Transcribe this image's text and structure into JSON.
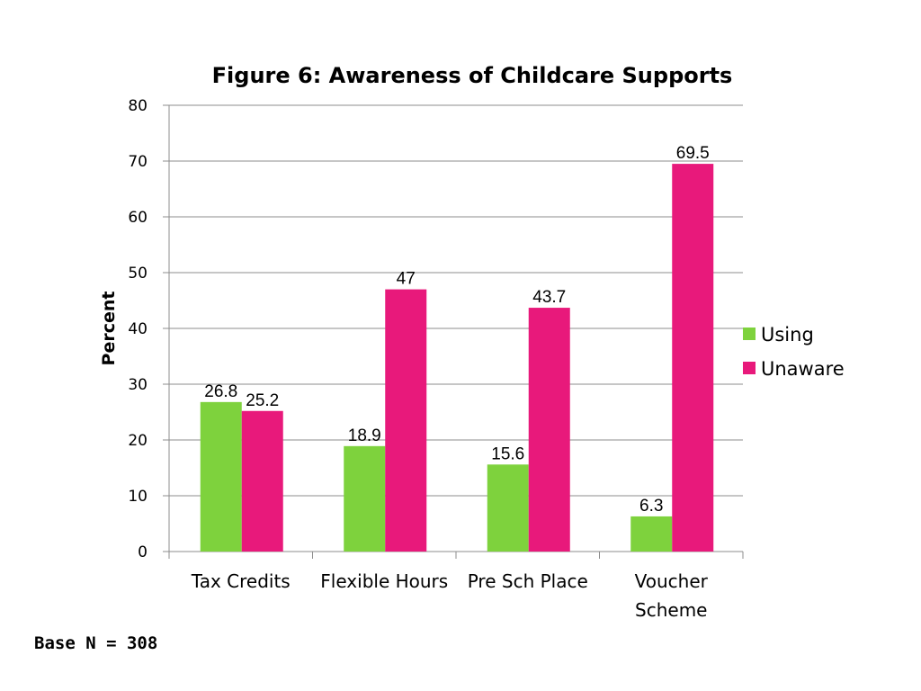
{
  "chart_data": {
    "type": "bar",
    "title": "Figure 6: Awareness of Childcare Supports",
    "xlabel": "",
    "ylabel": "Percent",
    "ylim": [
      0,
      80
    ],
    "yticks": [
      0,
      10,
      20,
      30,
      40,
      50,
      60,
      70,
      80
    ],
    "ytick_labels": [
      "0",
      "10",
      "20",
      "30",
      "40",
      "50",
      "60",
      "70",
      "80"
    ],
    "grid": true,
    "legend_position": "right",
    "categories": [
      [
        "Tax Credits"
      ],
      [
        "Flexible Hours"
      ],
      [
        "Pre Sch Place"
      ],
      [
        "Voucher",
        "Scheme"
      ]
    ],
    "series": [
      {
        "name": "Using",
        "color": "#7ed23d",
        "values": [
          26.8,
          18.9,
          15.6,
          6.3
        ],
        "value_labels": [
          "26.8",
          "18.9",
          "15.6",
          "6.3"
        ]
      },
      {
        "name": "Unaware",
        "color": "#e8197b",
        "values": [
          25.2,
          47,
          43.7,
          69.5
        ],
        "value_labels": [
          "25.2",
          "47",
          "43.7",
          "69.5"
        ]
      }
    ]
  },
  "footnote": "Base N = 308"
}
